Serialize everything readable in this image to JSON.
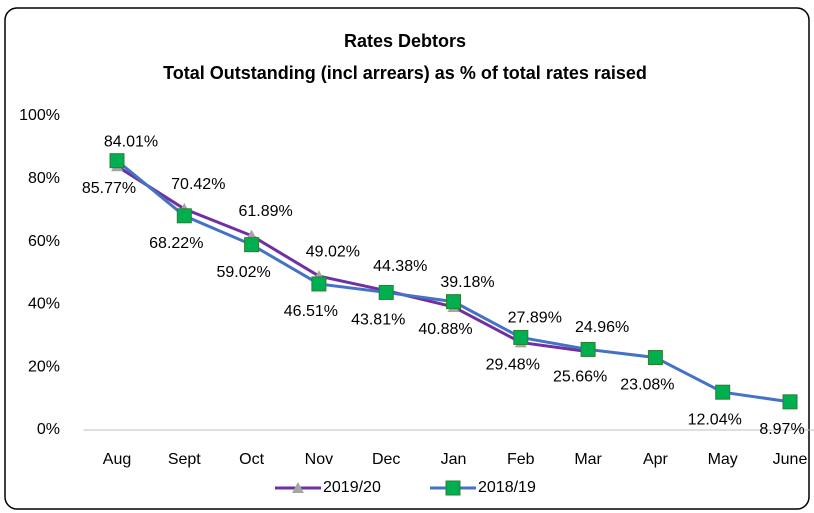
{
  "chart_data": {
    "type": "line",
    "title": "Rates Debtors",
    "subtitle": "Total Outstanding (incl arrears) as % of total rates  raised",
    "categories": [
      "Aug",
      "Sept",
      "Oct",
      "Nov",
      "Dec",
      "Jan",
      "Feb",
      "Mar",
      "Apr",
      "May",
      "June"
    ],
    "series": [
      {
        "name": "2019/20",
        "color": "#7030a0",
        "marker": "triangle",
        "marker_color": "#a5a5a5",
        "values": [
          84.01,
          70.42,
          61.89,
          49.02,
          44.38,
          39.18,
          27.89,
          24.96,
          null,
          null,
          null
        ],
        "value_labels": [
          "84.01%",
          "70.42%",
          "61.89%",
          "49.02%",
          "44.38%",
          "39.18%",
          "27.89%",
          "24.96%",
          null,
          null,
          null
        ]
      },
      {
        "name": "2018/19",
        "color": "#4472c4",
        "marker": "square",
        "marker_color": "#00b050",
        "values": [
          85.77,
          68.22,
          59.02,
          46.51,
          43.81,
          40.88,
          29.48,
          25.66,
          23.08,
          12.04,
          8.97
        ],
        "value_labels": [
          "85.77%",
          "68.22%",
          "59.02%",
          "46.51%",
          "43.81%",
          "40.88%",
          "29.48%",
          "25.66%",
          "23.08%",
          "12.04%",
          "8.97%"
        ]
      }
    ],
    "ylim": [
      0,
      100
    ],
    "yticks": [
      {
        "value": 0,
        "label": "0%"
      },
      {
        "value": 20,
        "label": "20%"
      },
      {
        "value": 40,
        "label": "40%"
      },
      {
        "value": 60,
        "label": "60%"
      },
      {
        "value": 80,
        "label": "80%"
      },
      {
        "value": 100,
        "label": "100%"
      }
    ],
    "grid": false,
    "legend": "bottom"
  }
}
